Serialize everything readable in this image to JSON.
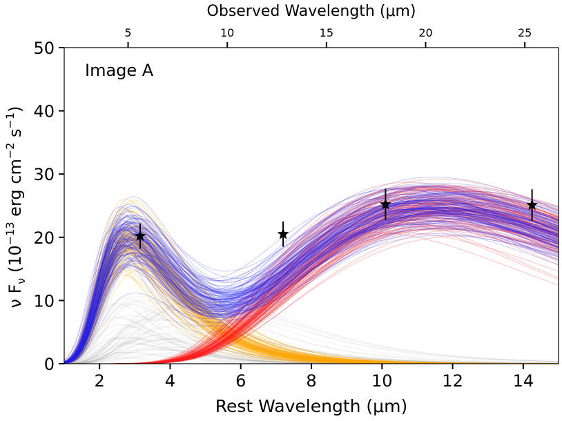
{
  "chart_data": {
    "type": "line",
    "annotation": "Image A",
    "xlabel": "Rest Wavelength (μm)",
    "x2label": "Observed Wavelength (μm)",
    "ylabel_main": "ν F",
    "ylabel_sub": "ν",
    "ylabel_unit_open": " (10",
    "ylabel_exp1": "−13",
    "ylabel_mid": " erg cm",
    "ylabel_exp2": "−2",
    "ylabel_mid2": " s",
    "ylabel_exp3": "−1",
    "ylabel_close": ")",
    "xlim": [
      1.0,
      15.0
    ],
    "ylim": [
      0,
      50
    ],
    "x_ticks": [
      2,
      4,
      6,
      8,
      10,
      12,
      14
    ],
    "x_tick_labels": [
      "2",
      "4",
      "6",
      "8",
      "10",
      "12",
      "14"
    ],
    "y_ticks": [
      0,
      10,
      20,
      30,
      40,
      50
    ],
    "y_tick_labels": [
      "0",
      "10",
      "20",
      "30",
      "40",
      "50"
    ],
    "top_ticks_observed": [
      5,
      10,
      15,
      20,
      25
    ],
    "top_tick_labels": [
      "5",
      "10",
      "15",
      "20",
      "25"
    ],
    "observed_per_rest": 1.78,
    "grid": false,
    "colors": {
      "total": "#1e1ef0",
      "hot": "#ffa500",
      "cold": "#ff1a1a",
      "other": "#a0a0a0",
      "points": "#000000"
    },
    "models": {
      "total": {
        "peak1_amp": 20,
        "peak1_center": 3.1,
        "peak2_amp": 25,
        "peak2_center": 11.5,
        "count": 120
      },
      "hot": {
        "peak_amp": 20,
        "peak_center": 2.8,
        "count": 90
      },
      "cold": {
        "peak_amp": 25,
        "peak_center": 11.5,
        "count": 110
      }
    },
    "data_points": [
      {
        "x": 3.15,
        "y": 20.2,
        "yerr": 2.0
      },
      {
        "x": 7.2,
        "y": 20.5,
        "yerr": 2.0
      },
      {
        "x": 10.1,
        "y": 25.2,
        "yerr": 2.5
      },
      {
        "x": 14.25,
        "y": 25.1,
        "yerr": 2.5
      }
    ]
  }
}
